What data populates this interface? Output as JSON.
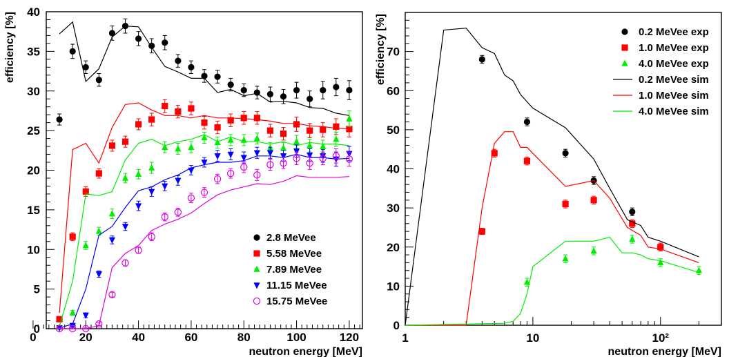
{
  "chart_data": [
    {
      "type": "scatter",
      "xlabel": "neutron energy [MeV]",
      "ylabel": "efficiency [%]",
      "xlim": [
        5,
        125
      ],
      "ylim": [
        0,
        40
      ],
      "x_ticks": [
        0,
        20,
        40,
        60,
        80,
        100,
        120
      ],
      "y_ticks": [
        0,
        5,
        10,
        15,
        20,
        25,
        30,
        35,
        40
      ],
      "grid": false,
      "legend_position": "bottom-right",
      "series": [
        {
          "name": "2.8 MeVee",
          "color": "#000000",
          "marker": "circle",
          "x": [
            10,
            15,
            20,
            25,
            30,
            35,
            40,
            45,
            50,
            55,
            60,
            65,
            70,
            75,
            80,
            85,
            90,
            95,
            100,
            105,
            110,
            115,
            120
          ],
          "y": [
            26.4,
            35,
            33,
            31.4,
            37.3,
            38.2,
            36.6,
            35.7,
            36.1,
            33.8,
            33,
            31.9,
            31.8,
            30.8,
            30.1,
            29.8,
            29.6,
            29.3,
            30.1,
            29,
            30.1,
            30.5,
            30.1
          ],
          "err": [
            0.7,
            0.9,
            0.8,
            0.8,
            0.9,
            0.9,
            0.9,
            0.9,
            0.9,
            0.8,
            0.8,
            0.8,
            0.8,
            0.8,
            0.8,
            0.8,
            0.9,
            0.9,
            1.0,
            1.0,
            1.1,
            1.1,
            1.2
          ],
          "sim_x": [
            10,
            15,
            20,
            25,
            30,
            35,
            40,
            45,
            50,
            55,
            60,
            65,
            70,
            75,
            80,
            85,
            90,
            95,
            100,
            105,
            110,
            115,
            120
          ],
          "sim_y": [
            37.2,
            38.7,
            31.2,
            32.8,
            36.8,
            38.2,
            38.1,
            35.5,
            33.1,
            32.4,
            31.6,
            31.6,
            29.8,
            30.2,
            29.4,
            29.7,
            28.6,
            28.7,
            28.5,
            27.9,
            27.8,
            27.2,
            26.9
          ]
        },
        {
          "name": "5.58 MeVee",
          "color": "#ff0000",
          "marker": "square",
          "x": [
            10,
            15,
            20,
            25,
            30,
            35,
            40,
            45,
            50,
            55,
            60,
            65,
            70,
            75,
            80,
            85,
            90,
            95,
            100,
            105,
            110,
            115,
            120
          ],
          "y": [
            1.2,
            11.6,
            17.3,
            19.6,
            23.1,
            23.6,
            25.8,
            26.4,
            28.1,
            27.4,
            27.8,
            26,
            25.4,
            26.3,
            26.6,
            26.6,
            25,
            24.6,
            25.8,
            25,
            25.1,
            25.5,
            25.2
          ],
          "err": [
            0.3,
            0.5,
            0.6,
            0.6,
            0.7,
            0.7,
            0.7,
            0.8,
            0.8,
            0.8,
            0.8,
            0.8,
            0.8,
            0.8,
            0.8,
            0.8,
            0.8,
            0.8,
            0.9,
            0.9,
            0.9,
            1.0,
            1.0
          ],
          "sim_x": [
            10,
            15,
            20,
            25,
            30,
            35,
            40,
            45,
            50,
            55,
            60,
            65,
            70,
            75,
            80,
            85,
            90,
            95,
            100,
            105,
            110,
            115,
            120
          ],
          "sim_y": [
            2,
            22.6,
            23.4,
            20.9,
            25.4,
            28.3,
            28.5,
            27.6,
            26.9,
            26.9,
            26.6,
            26.9,
            26.6,
            26.6,
            26.5,
            26.4,
            26.2,
            25.9,
            25.9,
            25.6,
            25.5,
            25.3,
            25.2
          ]
        },
        {
          "name": "7.89 MeVee",
          "color": "#00ee00",
          "marker": "triangle-up",
          "x": [
            10,
            15,
            20,
            25,
            30,
            35,
            40,
            45,
            50,
            55,
            60,
            65,
            70,
            75,
            80,
            85,
            90,
            95,
            100,
            105,
            110,
            115,
            120
          ],
          "y": [
            0.2,
            2.0,
            10.5,
            12.3,
            14.5,
            19.0,
            19.5,
            20.3,
            22.9,
            22.7,
            22.9,
            24.1,
            23.5,
            23.8,
            23.8,
            24.0,
            22.8,
            22.8,
            23.6,
            23.1,
            23.0,
            23.9,
            26.5
          ],
          "err": [
            0.2,
            0.3,
            0.5,
            0.5,
            0.6,
            0.6,
            0.6,
            0.7,
            0.7,
            0.7,
            0.7,
            0.7,
            0.7,
            0.7,
            0.7,
            0.7,
            0.7,
            0.7,
            0.8,
            0.8,
            0.8,
            0.9,
            1.0
          ],
          "sim_x": [
            10,
            15,
            20,
            25,
            30,
            35,
            40,
            45,
            50,
            55,
            60,
            65,
            70,
            75,
            80,
            85,
            90,
            95,
            100,
            105,
            110,
            115,
            120
          ],
          "sim_y": [
            0.3,
            6,
            17,
            16.8,
            17.3,
            21.3,
            23.4,
            23.9,
            23.1,
            23.6,
            23.9,
            24.5,
            23.6,
            24.2,
            23.6,
            23.6,
            23.3,
            23.6,
            23.1,
            23.5,
            23.3,
            23.3,
            23.1
          ]
        },
        {
          "name": "11.15 MeVee",
          "color": "#0000ff",
          "marker": "triangle-down",
          "x": [
            10,
            15,
            20,
            25,
            30,
            35,
            40,
            45,
            50,
            55,
            60,
            65,
            70,
            75,
            80,
            85,
            90,
            95,
            100,
            105,
            110,
            115,
            120
          ],
          "y": [
            0.1,
            0.4,
            1.7,
            6.9,
            11.2,
            12.9,
            15.5,
            17.3,
            18.0,
            18.7,
            20.0,
            21.0,
            21.8,
            22.0,
            21.6,
            22.2,
            22.2,
            21.8,
            22.4,
            21.9,
            21.8,
            21.4,
            22.1
          ],
          "err": [
            0.1,
            0.2,
            0.3,
            0.4,
            0.5,
            0.5,
            0.6,
            0.6,
            0.6,
            0.6,
            0.6,
            0.6,
            0.7,
            0.7,
            0.7,
            0.7,
            0.7,
            0.7,
            0.8,
            0.8,
            0.8,
            0.9,
            0.9
          ],
          "sim_x": [
            10,
            15,
            20,
            25,
            30,
            35,
            40,
            45,
            50,
            55,
            60,
            65,
            70,
            75,
            80,
            85,
            90,
            95,
            100,
            105,
            110,
            115,
            120
          ],
          "sim_y": [
            0.1,
            0.6,
            5,
            11.8,
            12.9,
            15.3,
            17.4,
            17.9,
            18.8,
            19.4,
            20.3,
            20.7,
            21,
            21,
            21.2,
            21.8,
            21.8,
            21.6,
            22.0,
            21.6,
            21.6,
            21.4,
            21.5
          ]
        },
        {
          "name": "15.75 MeVee",
          "color": "#dd00dd",
          "marker": "open-circle",
          "x": [
            10,
            15,
            20,
            25,
            30,
            35,
            40,
            45,
            50,
            55,
            60,
            65,
            70,
            75,
            80,
            85,
            90,
            95,
            100,
            105,
            110,
            115,
            120
          ],
          "y": [
            0,
            0,
            0,
            0.6,
            4.3,
            8.3,
            9.9,
            11.6,
            14.1,
            14.7,
            16.5,
            17.2,
            18.9,
            19.6,
            20.4,
            19.4,
            20.7,
            20.9,
            21.5,
            20.9,
            21.5,
            21.8,
            21.4
          ],
          "err": [
            0.1,
            0.1,
            0.1,
            0.2,
            0.3,
            0.4,
            0.4,
            0.5,
            0.5,
            0.5,
            0.6,
            0.6,
            0.6,
            0.6,
            0.7,
            0.7,
            0.7,
            0.7,
            0.8,
            0.8,
            0.8,
            0.9,
            0.9
          ],
          "sim_x": [
            10,
            15,
            20,
            25,
            30,
            35,
            40,
            45,
            50,
            55,
            60,
            65,
            70,
            75,
            80,
            85,
            90,
            95,
            100,
            105,
            110,
            115,
            120
          ],
          "sim_y": [
            0,
            0,
            0,
            0.4,
            7.7,
            9.5,
            10.5,
            12.4,
            13.2,
            13.8,
            14.6,
            15.8,
            16.9,
            17.5,
            17.9,
            18.3,
            18.2,
            18.6,
            19.3,
            19.1,
            19.1,
            19.1,
            19.2
          ]
        }
      ]
    },
    {
      "type": "scatter",
      "xlabel": "neutron energy [MeV]",
      "ylabel": "efficiency [%]",
      "x_scale": "log",
      "xlim": [
        1,
        300
      ],
      "ylim": [
        0,
        80
      ],
      "x_tick_labels": [
        "1",
        "10",
        "10²"
      ],
      "y_ticks": [
        0,
        10,
        20,
        30,
        40,
        50,
        60,
        70
      ],
      "grid": false,
      "legend_position": "top-right",
      "series": [
        {
          "name": "0.2 MeVee exp",
          "color": "#000000",
          "marker": "circle",
          "x": [
            4,
            9,
            18,
            30,
            60,
            100
          ],
          "y": [
            68,
            52,
            44,
            37,
            29,
            20
          ],
          "err": [
            1,
            1,
            1,
            1,
            1,
            1
          ]
        },
        {
          "name": "1.0 MeVee exp",
          "color": "#ff0000",
          "marker": "square",
          "x": [
            4,
            5,
            9,
            18,
            30,
            60,
            100
          ],
          "y": [
            24,
            44,
            42,
            31,
            32,
            26,
            20
          ],
          "err": [
            0.8,
            1,
            1,
            1,
            1,
            1,
            1
          ]
        },
        {
          "name": "4.0 MeVee exp",
          "color": "#00ee00",
          "marker": "triangle-up",
          "x": [
            9,
            18,
            30,
            60,
            100,
            200
          ],
          "y": [
            11,
            17,
            19,
            22,
            16,
            14
          ],
          "err": [
            1,
            1,
            1,
            1,
            1,
            1
          ]
        },
        {
          "name": "0.2 MeVee sim",
          "color": "#000000",
          "marker": "line",
          "x": [
            1,
            2,
            3,
            4,
            5,
            6,
            7,
            8,
            10,
            18,
            30,
            40,
            55,
            70,
            80,
            100,
            200
          ],
          "y": [
            0,
            75.5,
            76,
            71,
            69.5,
            64,
            62.5,
            59,
            55.5,
            50.5,
            42.5,
            35,
            27,
            25.5,
            22.5,
            21.5,
            17.5
          ]
        },
        {
          "name": "1.0 MeVee sim",
          "color": "#ff0000",
          "marker": "line",
          "x": [
            1,
            3,
            4,
            5,
            6,
            7,
            8,
            9,
            18,
            30,
            40,
            55,
            70,
            80,
            100,
            200
          ],
          "y": [
            0,
            0,
            30,
            46.5,
            49.5,
            49.5,
            45.5,
            45.5,
            35.5,
            37,
            32.5,
            25,
            23,
            20,
            19.5,
            16
          ]
        },
        {
          "name": "4.0 MeVee sim",
          "color": "#00ee00",
          "marker": "line",
          "x": [
            1,
            6,
            7,
            8,
            9,
            10,
            18,
            30,
            40,
            50,
            60,
            70,
            80,
            100,
            200
          ],
          "y": [
            0,
            0.5,
            1,
            3,
            8,
            15,
            21.5,
            21.5,
            22.5,
            18.5,
            18.5,
            18,
            17,
            16.5,
            13.5
          ]
        }
      ]
    }
  ]
}
